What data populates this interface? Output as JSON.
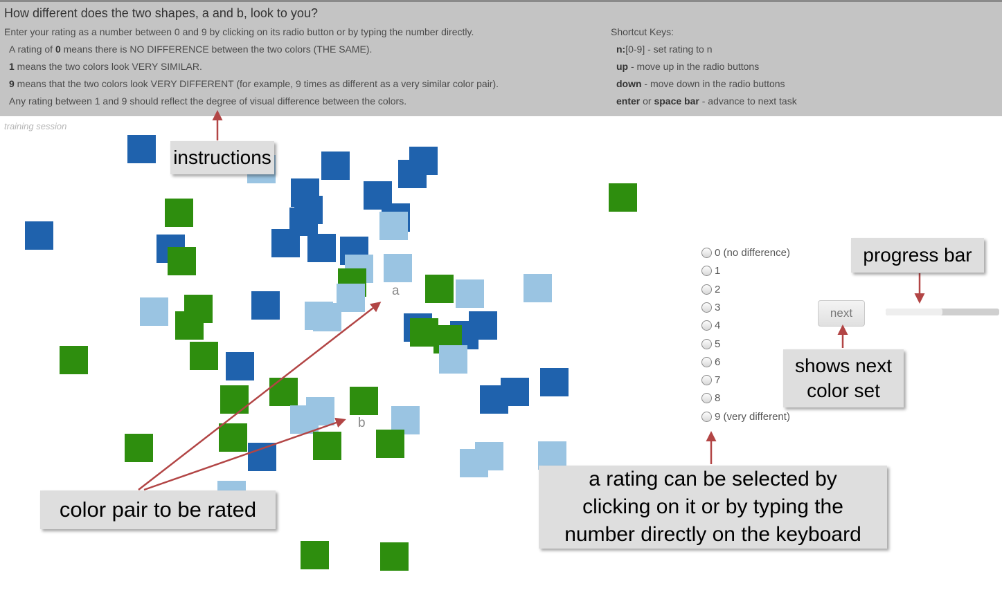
{
  "header": {
    "title": "How different does the two shapes, a and b, look to you?",
    "intro": "Enter your rating as a number between 0 and 9 by clicking on its radio button or by typing the number directly.",
    "rule0_pre": "A rating of ",
    "rule0_num": "0",
    "rule0_post": " means there is NO DIFFERENCE between the two colors (THE SAME).",
    "rule1_num": "1",
    "rule1_post": " means the two colors look VERY SIMILAR.",
    "rule9_num": "9",
    "rule9_post": " means that the two colors look VERY DIFFERENT (for example, 9 times as different as a very similar color pair).",
    "rule_any": "Any rating between 1 and 9 should reflect the degree of visual difference between the colors.",
    "shortcut_title": "Shortcut Keys:",
    "sc1_key": "n:",
    "sc1_desc": "[0-9] - set rating to n",
    "sc2_key": "up",
    "sc2_desc": " - move up in the radio buttons",
    "sc3_key": "down",
    "sc3_desc": " - move down in the radio buttons",
    "sc4_key1": "enter",
    "sc4_mid": " or ",
    "sc4_key2": "space bar",
    "sc4_desc": " - advance to next task"
  },
  "session_label": "training session",
  "shape_labels": {
    "a": "a",
    "b": "b"
  },
  "colors": {
    "dark_blue": "#1f62ad",
    "light_blue": "#9ac4e2",
    "green": "#2e8e0e"
  },
  "rating": {
    "options": [
      "0 (no difference)",
      "1",
      "2",
      "3",
      "4",
      "5",
      "6",
      "7",
      "8",
      "9 (very different)"
    ],
    "selected": null
  },
  "next_label": "next",
  "progress": {
    "fraction": 0.5
  },
  "callouts": {
    "instructions": "instructions",
    "pair": "color pair to be rated",
    "progress": "progress bar",
    "next_line1": "shows next",
    "next_line2": "color set",
    "rating_line1": "a rating can be selected by",
    "rating_line2": "clicking on it  or by typing the",
    "rating_line3": "number directly  on the keyboard"
  }
}
